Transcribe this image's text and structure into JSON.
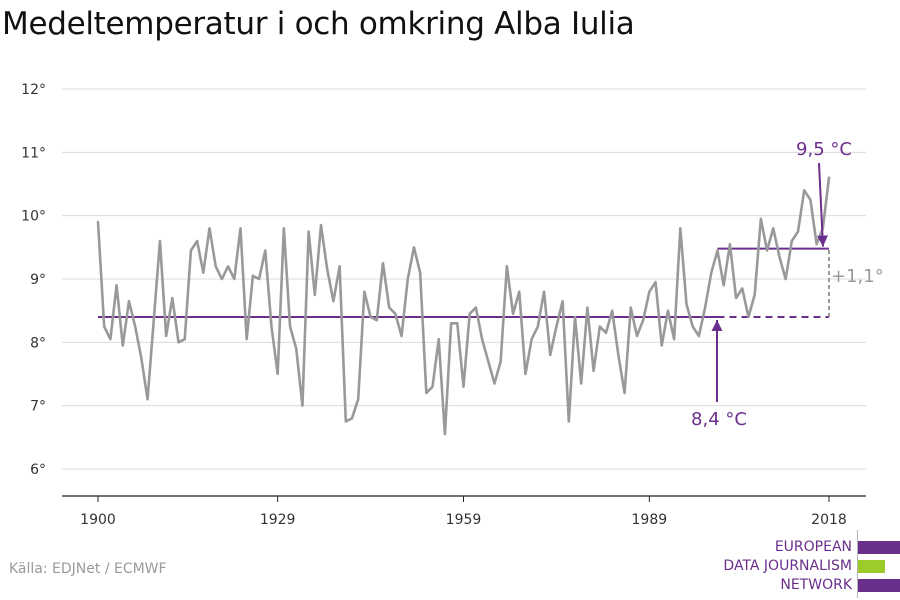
{
  "chart_data": {
    "type": "line",
    "title": "Medeltemperatur i och omkring Alba Iulia",
    "xlabel": "",
    "ylabel": "",
    "xlim": [
      1900,
      2018
    ],
    "ylim": [
      5.6,
      12.2
    ],
    "x_ticks": [
      {
        "value": 1900,
        "label": "1900"
      },
      {
        "value": 1929,
        "label": "1929"
      },
      {
        "value": 1959,
        "label": "1959"
      },
      {
        "value": 1989,
        "label": "1989"
      },
      {
        "value": 2018,
        "label": "2018"
      }
    ],
    "y_ticks": [
      {
        "value": 6,
        "label": "6°"
      },
      {
        "value": 7,
        "label": "7°"
      },
      {
        "value": 8,
        "label": "8°"
      },
      {
        "value": 9,
        "label": "9°"
      },
      {
        "value": 10,
        "label": "10°"
      },
      {
        "value": 11,
        "label": "11°"
      },
      {
        "value": 12,
        "label": "12°"
      }
    ],
    "grid": true,
    "series": [
      {
        "color": "#999999",
        "x": [
          1900,
          1901,
          1902,
          1903,
          1904,
          1905,
          1906,
          1907,
          1908,
          1909,
          1910,
          1911,
          1912,
          1913,
          1914,
          1915,
          1916,
          1917,
          1918,
          1919,
          1920,
          1921,
          1922,
          1923,
          1924,
          1925,
          1926,
          1927,
          1928,
          1929,
          1930,
          1931,
          1932,
          1933,
          1934,
          1935,
          1936,
          1937,
          1938,
          1939,
          1940,
          1941,
          1942,
          1943,
          1944,
          1945,
          1946,
          1947,
          1948,
          1949,
          1950,
          1951,
          1952,
          1953,
          1954,
          1955,
          1956,
          1957,
          1958,
          1959,
          1960,
          1961,
          1962,
          1963,
          1964,
          1965,
          1966,
          1967,
          1968,
          1969,
          1970,
          1971,
          1972,
          1973,
          1974,
          1975,
          1976,
          1977,
          1978,
          1979,
          1980,
          1981,
          1982,
          1983,
          1984,
          1985,
          1986,
          1987,
          1988,
          1989,
          1990,
          1991,
          1992,
          1993,
          1994,
          1995,
          1996,
          1997,
          1998,
          1999,
          2000,
          2001,
          2002,
          2003,
          2004,
          2005,
          2006,
          2007,
          2008,
          2009,
          2010,
          2011,
          2012,
          2013,
          2014,
          2015,
          2016,
          2017,
          2018
        ],
        "values": [
          9.9,
          8.25,
          8.05,
          8.9,
          7.95,
          8.65,
          8.25,
          7.75,
          7.1,
          8.35,
          9.6,
          8.1,
          8.7,
          8.0,
          8.05,
          9.45,
          9.6,
          9.1,
          9.8,
          9.2,
          9.0,
          9.2,
          9.0,
          9.8,
          8.05,
          9.05,
          9.0,
          9.45,
          8.25,
          7.5,
          9.8,
          8.25,
          7.9,
          7.0,
          9.75,
          8.75,
          9.85,
          9.15,
          8.65,
          9.2,
          6.75,
          6.8,
          7.1,
          8.8,
          8.4,
          8.35,
          9.25,
          8.55,
          8.45,
          8.1,
          9.0,
          9.5,
          9.1,
          7.2,
          7.3,
          8.05,
          6.55,
          8.3,
          8.3,
          7.3,
          8.45,
          8.55,
          8.05,
          7.7,
          7.35,
          7.7,
          9.2,
          8.45,
          8.8,
          7.5,
          8.05,
          8.25,
          8.8,
          7.8,
          8.25,
          8.65,
          6.75,
          8.4,
          7.35,
          8.55,
          7.55,
          8.25,
          8.15,
          8.5,
          7.8,
          7.2,
          8.55,
          8.1,
          8.35,
          8.8,
          8.95,
          7.95,
          8.5,
          8.05,
          9.8,
          8.6,
          8.25,
          8.1,
          8.55,
          9.1,
          9.45,
          8.9,
          9.55,
          8.7,
          8.85,
          8.4,
          8.75,
          9.95,
          9.45,
          9.8,
          9.35,
          9.0,
          9.6,
          9.75,
          10.4,
          10.25,
          9.55,
          9.8,
          10.6
        ]
      }
    ],
    "reference_lines": [
      {
        "label": "8,4 °C",
        "value": 8.4,
        "x_start": 1900,
        "x_end": 2000,
        "dashed_until": 2018,
        "color": "#6b2f8d"
      },
      {
        "label": "9,5 °C",
        "value": 9.48,
        "x_start": 2000,
        "x_end": 2018,
        "color": "#6b2f8d"
      }
    ],
    "difference_annotation": {
      "label": "+1,1°",
      "x": 2018,
      "from": 8.4,
      "to": 9.48,
      "color": "#999999"
    }
  },
  "source": "Källa: EDJNet / ECMWF",
  "logo": {
    "lines": [
      "EUROPEAN",
      "DATA JOURNALISM",
      "NETWORK"
    ],
    "text_color": "#6a2f8a",
    "bar_colors": [
      "#6a2f8a",
      "#9ccb2a",
      "#6a2f8a"
    ]
  }
}
